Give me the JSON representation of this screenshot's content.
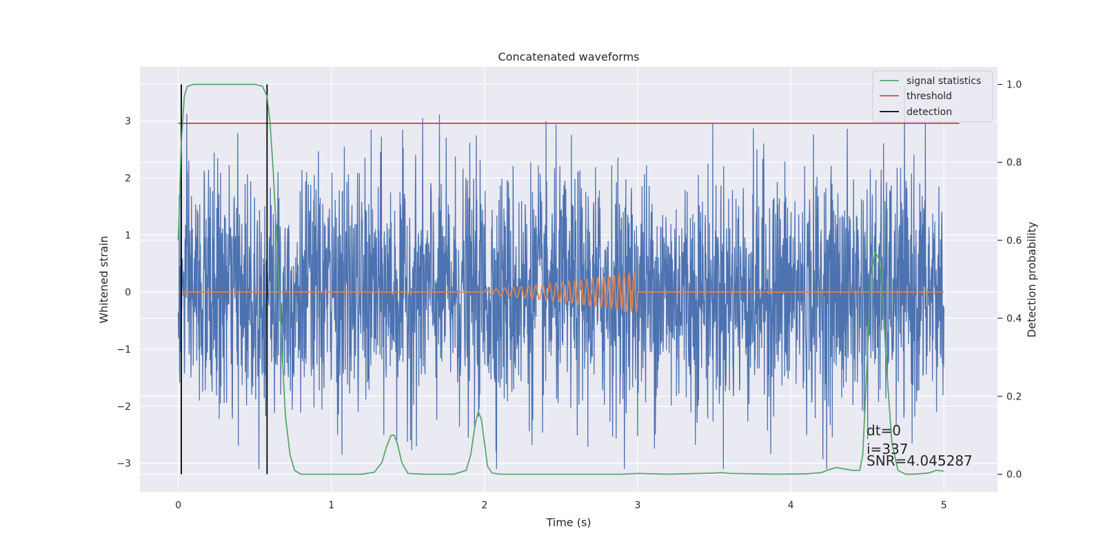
{
  "chart_data": {
    "type": "line",
    "title": "Concatenated waveforms",
    "xlabel": "Time (s)",
    "ylabel": "Whitened strain",
    "y2label": "Detection probability",
    "xlim": [
      -0.25,
      5.35
    ],
    "ylim": [
      -3.5,
      3.95
    ],
    "y2lim": [
      -0.045,
      1.045
    ],
    "xticks": [
      0,
      1,
      2,
      3,
      4,
      5
    ],
    "xtick_labels": [
      "0",
      "1",
      "2",
      "3",
      "4",
      "5"
    ],
    "yticks": [
      -3,
      -2,
      -1,
      0,
      1,
      2,
      3
    ],
    "ytick_labels": [
      "−3",
      "−2",
      "−1",
      "0",
      "1",
      "2",
      "3"
    ],
    "y2ticks": [
      0.0,
      0.2,
      0.4,
      0.6,
      0.8,
      1.0
    ],
    "y2tick_labels": [
      "0.0",
      "0.2",
      "0.4",
      "0.6",
      "0.8",
      "1.0"
    ],
    "grid": true,
    "legend_position": "top-right",
    "colors": {
      "strain": "#4c72b0",
      "template": "#dd8452",
      "signal_statistics": "#55a868",
      "threshold": "#c44e52",
      "detection": "#000000",
      "background": "#eaeaf2",
      "grid": "#ffffff"
    },
    "legend": [
      {
        "label": "signal statistics",
        "color": "#55a868"
      },
      {
        "label": "threshold",
        "color": "#c44e52"
      },
      {
        "label": "detection",
        "color": "#000000"
      }
    ],
    "series": [
      {
        "name": "signal statistics",
        "axis": "right",
        "x": [
          0.0,
          0.02,
          0.04,
          0.06,
          0.1,
          0.15,
          0.3,
          0.5,
          0.55,
          0.58,
          0.6,
          0.62,
          0.65,
          0.68,
          0.7,
          0.73,
          0.76,
          0.8,
          0.9,
          1.0,
          1.2,
          1.28,
          1.33,
          1.36,
          1.39,
          1.41,
          1.43,
          1.46,
          1.5,
          1.6,
          1.8,
          1.88,
          1.91,
          1.94,
          1.96,
          1.98,
          2.0,
          2.02,
          2.05,
          2.1,
          2.3,
          2.6,
          2.9,
          3.0,
          3.2,
          3.5,
          3.55,
          3.6,
          3.9,
          4.1,
          4.2,
          4.25,
          4.3,
          4.4,
          4.45,
          4.47,
          4.5,
          4.52,
          4.55,
          4.58,
          4.6,
          4.63,
          4.66,
          4.7,
          4.75,
          4.8,
          4.9,
          4.95,
          5.0
        ],
        "y": [
          0.6,
          0.85,
          0.97,
          0.995,
          1.0,
          1.0,
          1.0,
          1.0,
          0.995,
          0.97,
          0.9,
          0.78,
          0.55,
          0.3,
          0.15,
          0.05,
          0.01,
          0.0,
          0.0,
          0.0,
          0.0,
          0.005,
          0.03,
          0.07,
          0.1,
          0.1,
          0.08,
          0.03,
          0.002,
          0.0,
          0.0,
          0.01,
          0.05,
          0.13,
          0.16,
          0.14,
          0.08,
          0.02,
          0.003,
          0.0,
          0.0,
          0.0,
          0.0,
          0.002,
          0.0,
          0.003,
          0.004,
          0.002,
          0.0,
          0.001,
          0.004,
          0.012,
          0.017,
          0.01,
          0.01,
          0.05,
          0.3,
          0.5,
          0.57,
          0.55,
          0.45,
          0.25,
          0.08,
          0.01,
          0.0,
          0.0,
          0.003,
          0.01,
          0.008
        ]
      },
      {
        "name": "threshold",
        "axis": "right",
        "x": [
          0.0,
          5.1
        ],
        "y": [
          0.9,
          0.9
        ]
      },
      {
        "name": "detection",
        "axis": "right",
        "x": [
          0.02,
          0.58
        ],
        "y_range": [
          0.0,
          1.0
        ]
      }
    ],
    "strain_noise": {
      "axis": "left",
      "x_range": [
        0.0,
        5.0
      ],
      "approx_range": [
        -3.1,
        3.6
      ]
    },
    "template_chirp": {
      "axis": "left",
      "x_range": [
        2.0,
        3.0
      ],
      "peak_amplitude": 0.35
    },
    "annotations": [
      "dt=0",
      "i=337",
      "SNR=4.045287"
    ]
  }
}
